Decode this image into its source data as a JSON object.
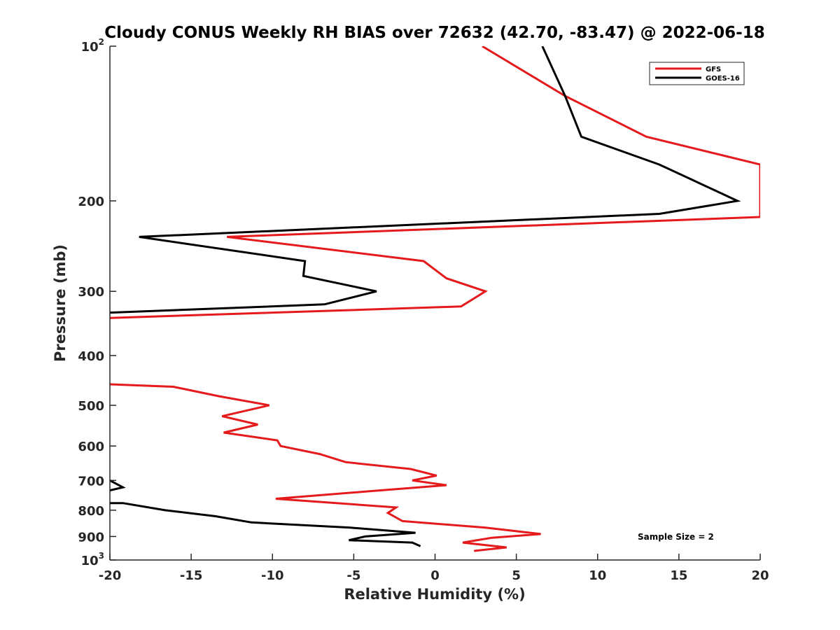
{
  "chart_data": {
    "type": "line",
    "title": "Cloudy CONUS Weekly RH BIAS over 72632 (42.70, -83.47) @ 2022-06-18",
    "xlabel": "Relative Humidity (%)",
    "ylabel": "Pressure (mb)",
    "xlim": [
      -20,
      20
    ],
    "ylim": [
      100,
      1000
    ],
    "y_scale": "log",
    "y_reversed": true,
    "grid": false,
    "legend_position": "top-right",
    "x_ticks": [
      "-20",
      "-15",
      "-10",
      "-5",
      "0",
      "5",
      "10",
      "15",
      "20"
    ],
    "y_ticks": [
      {
        "value": 100,
        "base": "10",
        "exp": "2"
      },
      {
        "value": 200,
        "label": "200"
      },
      {
        "value": 300,
        "label": "300"
      },
      {
        "value": 400,
        "label": "400"
      },
      {
        "value": 500,
        "label": "500"
      },
      {
        "value": 600,
        "label": "600"
      },
      {
        "value": 700,
        "label": "700"
      },
      {
        "value": 800,
        "label": "800"
      },
      {
        "value": 900,
        "label": "900"
      },
      {
        "value": 1000,
        "base": "10",
        "exp": "3"
      }
    ],
    "annotation": "Sample Size = 2",
    "series": [
      {
        "name": "GFS",
        "color": "#e41a1c",
        "segments": [
          [
            [
              2.9,
              100
            ],
            [
              8,
              125
            ],
            [
              13,
              150
            ],
            [
              20,
              170
            ],
            [
              20,
              215
            ],
            [
              -12.8,
              235
            ],
            [
              -0.7,
              262
            ],
            [
              0.7,
              283
            ],
            [
              3.1,
              300
            ],
            [
              1.6,
              321
            ],
            [
              -20,
              338
            ]
          ],
          [
            [
              -20,
              455
            ],
            [
              -16.1,
              460
            ],
            [
              -13.3,
              480
            ],
            [
              -10.2,
              500
            ],
            [
              -13.1,
              525
            ],
            [
              -10.9,
              545
            ],
            [
              -13.0,
              565
            ],
            [
              -9.7,
              585
            ],
            [
              -9.5,
              600
            ],
            [
              -7.1,
              622
            ],
            [
              -5.5,
              645
            ],
            [
              -1.5,
              665
            ],
            [
              0.1,
              685
            ],
            [
              -1.4,
              700
            ],
            [
              0.7,
              715
            ],
            [
              -4.1,
              735
            ],
            [
              -9.8,
              760
            ],
            [
              -2.4,
              790
            ],
            [
              -2.9,
              810
            ],
            [
              -2.0,
              840
            ],
            [
              3.1,
              865
            ],
            [
              6.5,
              890
            ],
            [
              3.5,
              905
            ],
            [
              1.7,
              925
            ],
            [
              4.4,
              945
            ],
            [
              2.4,
              960
            ]
          ]
        ]
      },
      {
        "name": "GOES-16",
        "color": "#000000",
        "segments": [
          [
            [
              6.6,
              100
            ],
            [
              8,
              125
            ],
            [
              9,
              150
            ],
            [
              13.8,
              170
            ],
            [
              16.3,
              185
            ],
            [
              18.6,
              200
            ],
            [
              13.8,
              212
            ],
            [
              -18.2,
              235
            ],
            [
              -8.0,
              262
            ],
            [
              -8.1,
              280
            ],
            [
              -3.6,
              300
            ],
            [
              -6.8,
              318
            ],
            [
              -20,
              330
            ]
          ],
          [
            [
              -20,
              700
            ],
            [
              -19.2,
              722
            ],
            [
              -20,
              732
            ]
          ],
          [
            [
              -20,
              775
            ],
            [
              -19.2,
              775
            ],
            [
              -16.6,
              800
            ],
            [
              -13.5,
              822
            ],
            [
              -11.3,
              845
            ],
            [
              -5.2,
              865
            ],
            [
              -1.2,
              885
            ],
            [
              -4.3,
              900
            ],
            [
              -5.3,
              915
            ],
            [
              -1.4,
              925
            ],
            [
              -0.9,
              940
            ]
          ]
        ]
      }
    ]
  }
}
